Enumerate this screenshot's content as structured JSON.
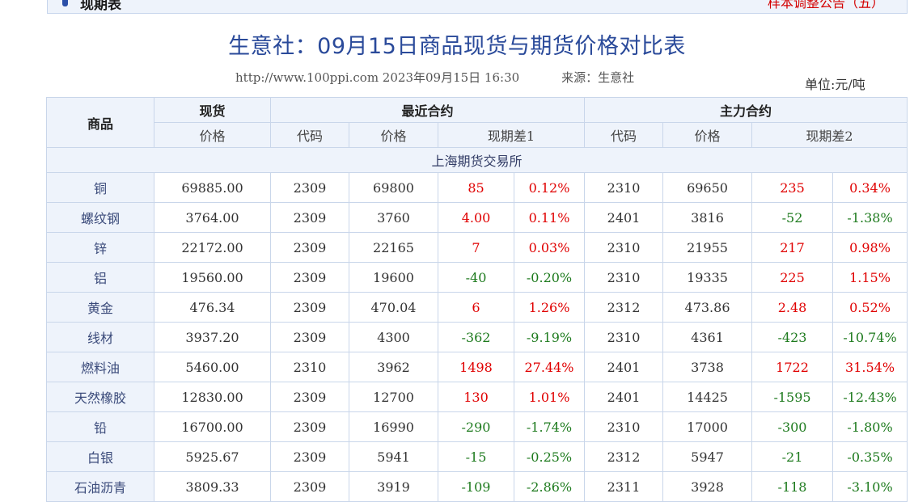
{
  "topbar": {
    "section_title": "现期表",
    "notice_link": "样本调整公告（五）"
  },
  "title": "生意社：09月15日商品现货与期货价格对比表",
  "subline": {
    "url_date": "http://www.100ppi.com 2023年09月15日 16:30",
    "source": "来源：生意社"
  },
  "unit": "单位:元/吨",
  "headers": {
    "commodity": "商品",
    "spot": "现货",
    "recent_contract": "最近合约",
    "main_contract": "主力合约",
    "price": "价格",
    "code": "代码",
    "basis1": "现期差1",
    "basis2": "现期差2"
  },
  "exchange": "上海期货交易所",
  "colors": {
    "positive": "#e00000",
    "negative": "#1d7a1d",
    "title": "#2a4a9a",
    "header_bg": "#eef3fb"
  },
  "rows": [
    {
      "name": "铜",
      "spot": "69885.00",
      "r_code": "2309",
      "r_price": "69800",
      "d1": "85",
      "p1": "0.12%",
      "m_code": "2310",
      "m_price": "69650",
      "d2": "235",
      "p2": "0.34%"
    },
    {
      "name": "螺纹钢",
      "spot": "3764.00",
      "r_code": "2309",
      "r_price": "3760",
      "d1": "4.00",
      "p1": "0.11%",
      "m_code": "2401",
      "m_price": "3816",
      "d2": "-52",
      "p2": "-1.38%"
    },
    {
      "name": "锌",
      "spot": "22172.00",
      "r_code": "2309",
      "r_price": "22165",
      "d1": "7",
      "p1": "0.03%",
      "m_code": "2310",
      "m_price": "21955",
      "d2": "217",
      "p2": "0.98%"
    },
    {
      "name": "铝",
      "spot": "19560.00",
      "r_code": "2309",
      "r_price": "19600",
      "d1": "-40",
      "p1": "-0.20%",
      "m_code": "2310",
      "m_price": "19335",
      "d2": "225",
      "p2": "1.15%"
    },
    {
      "name": "黄金",
      "spot": "476.34",
      "r_code": "2309",
      "r_price": "470.04",
      "d1": "6",
      "p1": "1.26%",
      "m_code": "2312",
      "m_price": "473.86",
      "d2": "2.48",
      "p2": "0.52%"
    },
    {
      "name": "线材",
      "spot": "3937.20",
      "r_code": "2309",
      "r_price": "4300",
      "d1": "-362",
      "p1": "-9.19%",
      "m_code": "2310",
      "m_price": "4361",
      "d2": "-423",
      "p2": "-10.74%"
    },
    {
      "name": "燃料油",
      "spot": "5460.00",
      "r_code": "2310",
      "r_price": "3962",
      "d1": "1498",
      "p1": "27.44%",
      "m_code": "2401",
      "m_price": "3738",
      "d2": "1722",
      "p2": "31.54%"
    },
    {
      "name": "天然橡胶",
      "spot": "12830.00",
      "r_code": "2309",
      "r_price": "12700",
      "d1": "130",
      "p1": "1.01%",
      "m_code": "2401",
      "m_price": "14425",
      "d2": "-1595",
      "p2": "-12.43%"
    },
    {
      "name": "铅",
      "spot": "16700.00",
      "r_code": "2309",
      "r_price": "16990",
      "d1": "-290",
      "p1": "-1.74%",
      "m_code": "2310",
      "m_price": "17000",
      "d2": "-300",
      "p2": "-1.80%"
    },
    {
      "name": "白银",
      "spot": "5925.67",
      "r_code": "2309",
      "r_price": "5941",
      "d1": "-15",
      "p1": "-0.25%",
      "m_code": "2312",
      "m_price": "5947",
      "d2": "-21",
      "p2": "-0.35%"
    },
    {
      "name": "石油沥青",
      "spot": "3809.33",
      "r_code": "2309",
      "r_price": "3919",
      "d1": "-109",
      "p1": "-2.86%",
      "m_code": "2311",
      "m_price": "3928",
      "d2": "-118",
      "p2": "-3.10%"
    }
  ]
}
